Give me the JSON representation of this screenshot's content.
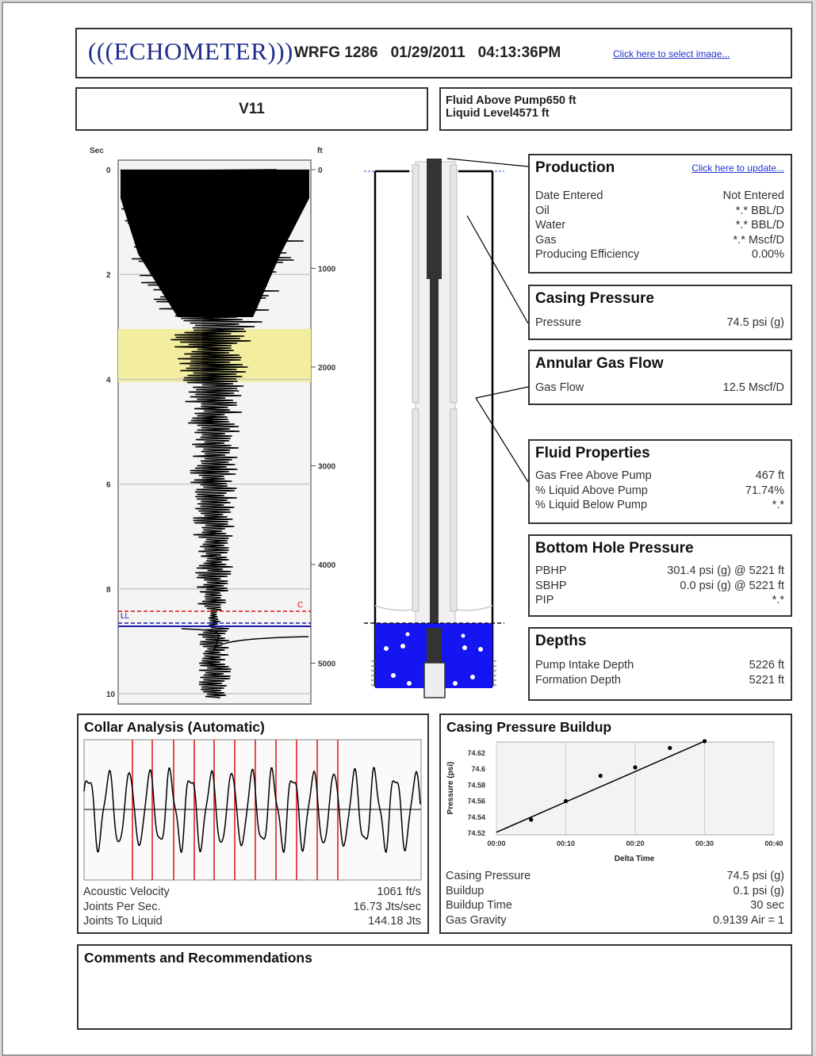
{
  "header": {
    "logo_text": "(((ECHOMETER)))",
    "well": "WRFG 1286",
    "date": "01/29/2011",
    "time": "04:13:36PM",
    "select_image_link": "Click here to select image..."
  },
  "test_name": "V11",
  "fluid_summary": {
    "rows": [
      {
        "label": "Fluid Above Pump",
        "value": "650 ft"
      },
      {
        "label": "Liquid Level",
        "value": "4571 ft"
      }
    ]
  },
  "acoustic_trace": {
    "left_axis_unit": "Sec",
    "right_axis_unit": "ft",
    "sec_ticks": [
      "0",
      "2",
      "4",
      "6",
      "8",
      "10"
    ],
    "ft_ticks": [
      "0",
      "1000",
      "2000",
      "3000",
      "4000",
      "5000"
    ],
    "marker_c": "C",
    "marker_ll": "LL"
  },
  "production": {
    "title": "Production",
    "update_link": "Click here to update...",
    "rows": [
      {
        "label": "Date Entered",
        "value": "Not Entered"
      },
      {
        "label": "Oil",
        "value": "*.* BBL/D"
      },
      {
        "label": "Water",
        "value": "*.* BBL/D"
      },
      {
        "label": "Gas",
        "value": "*.* Mscf/D"
      },
      {
        "label": "Producing Efficiency",
        "value": "0.00%"
      }
    ]
  },
  "casing_pressure": {
    "title": "Casing Pressure",
    "rows": [
      {
        "label": "Pressure",
        "value": "74.5 psi (g)"
      }
    ]
  },
  "annular_gas_flow": {
    "title": "Annular Gas Flow",
    "rows": [
      {
        "label": "Gas Flow",
        "value": "12.5 Mscf/D"
      }
    ]
  },
  "fluid_properties": {
    "title": "Fluid Properties",
    "rows": [
      {
        "label": "Gas Free Above Pump",
        "value": "467 ft"
      },
      {
        "label": "% Liquid Above Pump",
        "value": "71.74%"
      },
      {
        "label": "% Liquid Below Pump",
        "value": "*.*"
      }
    ]
  },
  "bottom_hole_pressure": {
    "title": "Bottom Hole Pressure",
    "rows": [
      {
        "label": "PBHP",
        "value": "301.4 psi (g) @ 5221 ft"
      },
      {
        "label": "SBHP",
        "value": "0.0 psi (g) @ 5221 ft"
      },
      {
        "label": "PIP",
        "value": "*.*"
      }
    ]
  },
  "depths": {
    "title": "Depths",
    "rows": [
      {
        "label": "Pump Intake Depth",
        "value": "5226 ft"
      },
      {
        "label": "Formation Depth",
        "value": "5221 ft"
      }
    ]
  },
  "collar_analysis": {
    "title": "Collar Analysis (Automatic)",
    "rows": [
      {
        "label": "Acoustic Velocity",
        "value": "1061 ft/s"
      },
      {
        "label": "Joints Per Sec.",
        "value": "16.73 Jts/sec"
      },
      {
        "label": "Joints To Liquid",
        "value": "144.18 Jts"
      }
    ]
  },
  "buildup": {
    "title": "Casing Pressure Buildup",
    "rows": [
      {
        "label": "Casing Pressure",
        "value": "74.5 psi (g)"
      },
      {
        "label": "Buildup",
        "value": "0.1 psi (g)"
      },
      {
        "label": "Buildup Time",
        "value": "30 sec"
      },
      {
        "label": "Gas Gravity",
        "value": "0.9139 Air = 1"
      }
    ]
  },
  "comments": {
    "title": "Comments and Recommendations"
  },
  "chart_data": {
    "type": "scatter",
    "xlabel": "Delta Time",
    "ylabel": "Pressure (psi)",
    "x_tick_labels": [
      "00:00",
      "00:10",
      "00:20",
      "00:30",
      "00:40"
    ],
    "y_tick_labels": [
      "74.52",
      "74.54",
      "74.56",
      "74.58",
      "74.6",
      "74.62"
    ],
    "xlim": [
      0,
      40
    ],
    "ylim": [
      74.52,
      74.63
    ],
    "grid": true,
    "points": [
      {
        "x": 5,
        "y": 74.538
      },
      {
        "x": 10,
        "y": 74.56
      },
      {
        "x": 15,
        "y": 74.59
      },
      {
        "x": 20,
        "y": 74.6
      },
      {
        "x": 25,
        "y": 74.623
      }
    ],
    "fit_line": [
      {
        "x": 0,
        "y": 74.523
      },
      {
        "x": 30,
        "y": 74.631
      }
    ]
  }
}
